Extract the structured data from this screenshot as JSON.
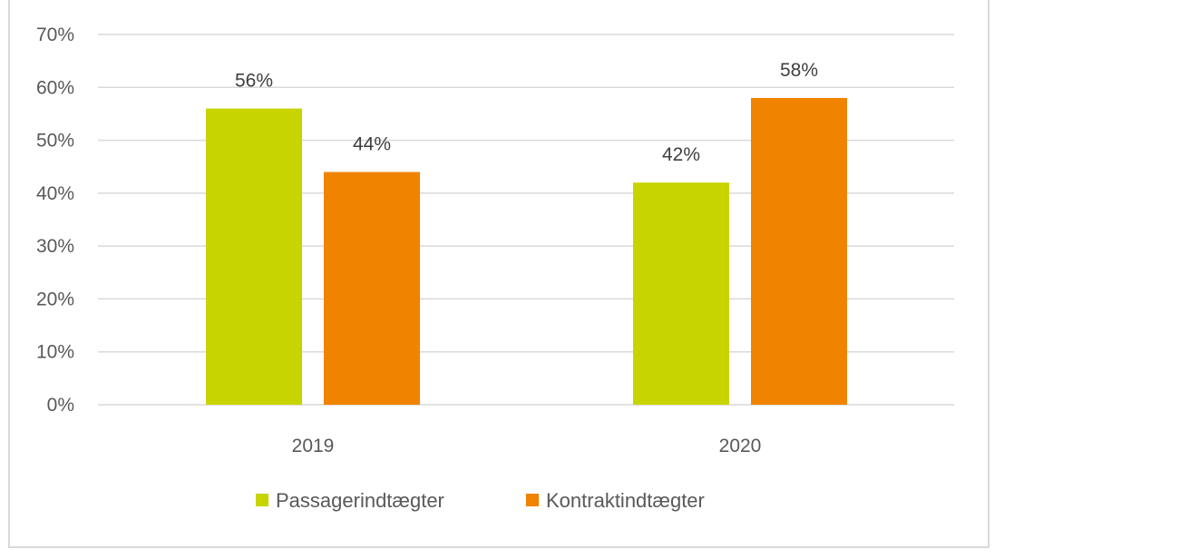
{
  "chart_data": {
    "type": "bar",
    "categories": [
      "2019",
      "2020"
    ],
    "series": [
      {
        "name": "Passagerindtægter",
        "values": [
          56,
          42
        ],
        "labels": [
          "56%",
          "42%"
        ],
        "color": "#c8d400"
      },
      {
        "name": "Kontraktindtægter",
        "values": [
          44,
          58
        ],
        "labels": [
          "44%",
          "58%"
        ],
        "color": "#f08300"
      }
    ],
    "y_ticks": [
      "0%",
      "10%",
      "20%",
      "30%",
      "40%",
      "50%",
      "60%",
      "70%"
    ],
    "ylim": [
      0,
      70
    ],
    "y_unit": "%",
    "grid": true,
    "legend_position": "bottom",
    "title": "",
    "xlabel": "",
    "ylabel": ""
  }
}
